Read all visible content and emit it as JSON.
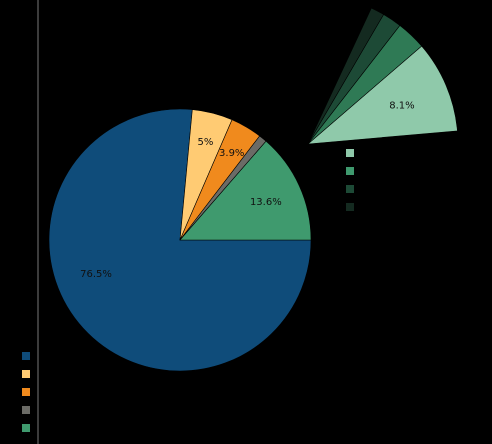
{
  "chart_data": {
    "type": "pie",
    "main_pie": {
      "slices": [
        {
          "value": 76.5,
          "label": "76.5%",
          "color": "#0f4c7a"
        },
        {
          "value": 5.0,
          "label": "5%",
          "color": "#ffcb73"
        },
        {
          "value": 3.9,
          "label": "3.9%",
          "color": "#f08a1d"
        },
        {
          "value": 1.0,
          "label": "",
          "color": "#6b6b66"
        },
        {
          "value": 13.6,
          "label": "13.6%",
          "color": "#3f9a6e"
        }
      ],
      "start_angle_deg": 0,
      "direction": "clockwise"
    },
    "detail_pie": {
      "parent_slice": "13.6%",
      "slices": [
        {
          "value": 8.1,
          "label": "8.1%",
          "color": "#8fc9aa"
        },
        {
          "value": 2.6,
          "label": "",
          "color": "#2f7a55"
        },
        {
          "value": 1.7,
          "label": "",
          "color": "#1d4a36"
        },
        {
          "value": 1.2,
          "label": "",
          "color": "#142a20"
        }
      ]
    },
    "legend_main": {
      "position": "bottom-left",
      "swatches": [
        "#0f4c7a",
        "#ffcb73",
        "#f08a1d",
        "#6b6b66",
        "#3f9a6e"
      ]
    },
    "legend_detail": {
      "position": "right",
      "swatches": [
        "#8fc9aa",
        "#3f9a6e",
        "#1d4a36",
        "#142a20"
      ]
    },
    "axis_line": true
  }
}
